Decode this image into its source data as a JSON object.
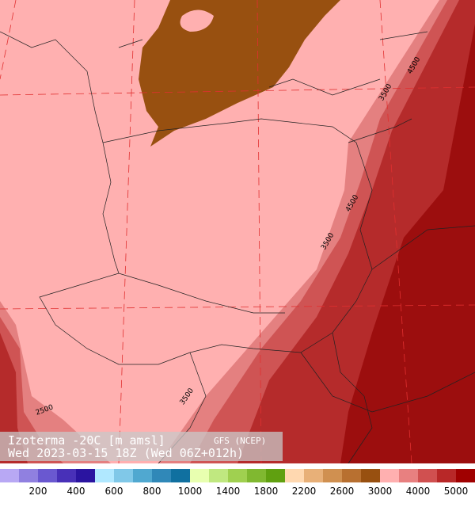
{
  "map": {
    "title": "Izoterma -20C [m amsl]",
    "source": "GFS (NCEP)",
    "run": "Wed 2023-03-15 18Z (Wed 06Z+012h)",
    "contour_labels": [
      "4500",
      "3500",
      "4500",
      "3500",
      "3500",
      "2500"
    ]
  },
  "colorbar": {
    "labels": [
      "200",
      "400",
      "600",
      "800",
      "1000",
      "1400",
      "1800",
      "2200",
      "2600",
      "3000",
      "4000",
      "5000"
    ],
    "colors": [
      "#b8a8f4",
      "#9080e0",
      "#6a58d0",
      "#4830b8",
      "#2a14a0",
      "#b0e8ff",
      "#80c8e8",
      "#50a8d0",
      "#3088b8",
      "#1070a0",
      "#e8ffb0",
      "#c0e880",
      "#a0d050",
      "#80b830",
      "#60a010",
      "#ffd8b0",
      "#e8b078",
      "#d09050",
      "#b87030",
      "#985010",
      "#ffb0b0",
      "#e88080",
      "#d05050",
      "#b82828",
      "#a00000"
    ]
  }
}
